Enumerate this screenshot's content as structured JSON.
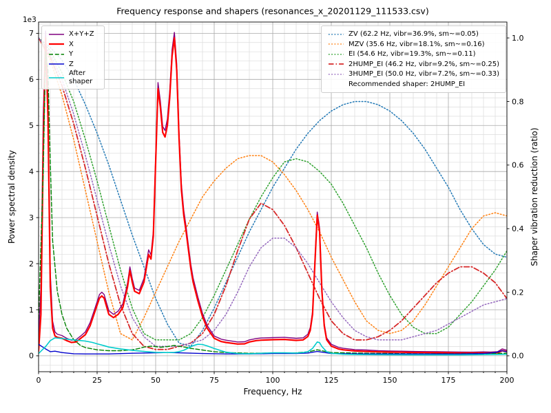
{
  "figure": {
    "title": "Frequency response and shapers (resonances_x_20201129_111533.csv)",
    "offset_text": "1e3"
  },
  "axes": {
    "xlabel": "Frequency, Hz",
    "ylabel_left": "Power spectral density",
    "ylabel_right": "Shaper vibration reduction (ratio)"
  },
  "legend_psd": {
    "items": [
      "X+Y+Z",
      "X",
      "Y",
      "Z",
      "After shaper"
    ]
  },
  "legend_shapers": {
    "items": [
      "ZV (62.2 Hz, vibr=36.9%, sm~=0.05)",
      "MZV (35.6 Hz, vibr=18.1%, sm~=0.16)",
      "EI (54.6 Hz, vibr=19.3%, sm~=0.11)",
      "2HUMP_EI (46.2 Hz, vibr=9.2%, sm~=0.25)",
      "3HUMP_EI (50.0 Hz, vibr=7.2%, sm~=0.33)"
    ],
    "note": "Recommended shaper: 2HUMP_EI"
  },
  "chart_data": {
    "type": "line",
    "title": "Frequency response and shapers (resonances_x_20201129_111533.csv)",
    "xlabel": "Frequency, Hz",
    "ylabel_left": "Power spectral density",
    "ylabel_right": "Shaper vibration reduction (ratio)",
    "grid": "major+minor",
    "legend_positions": [
      "upper-left",
      "upper-right"
    ],
    "xlim": [
      0,
      200
    ],
    "ylim_left": [
      -345,
      7245
    ],
    "ylim_right": [
      -0.05,
      1.05
    ],
    "x_ticks": [
      0,
      25,
      50,
      75,
      100,
      125,
      150,
      175,
      200
    ],
    "x_minor_step": 5,
    "y_ticks_left": [
      0,
      1000,
      2000,
      3000,
      4000,
      5000,
      6000,
      7000
    ],
    "y_minor_step_left": 200,
    "y_ticks_right": [
      0.0,
      0.2,
      0.4,
      0.6,
      0.8,
      1.0
    ],
    "series": [
      {
        "name": "ZV",
        "axis": "ratio",
        "color": "#1f77b4",
        "width": 1.5,
        "dash": "dot",
        "x0": 0,
        "dx": 5,
        "y": [
          1.0,
          0.97,
          0.93,
          0.87,
          0.79,
          0.7,
          0.6,
          0.49,
          0.38,
          0.28,
          0.18,
          0.1,
          0.04,
          0.03,
          0.08,
          0.15,
          0.23,
          0.31,
          0.39,
          0.46,
          0.53,
          0.59,
          0.65,
          0.7,
          0.74,
          0.77,
          0.79,
          0.8,
          0.8,
          0.79,
          0.77,
          0.74,
          0.7,
          0.65,
          0.59,
          0.53,
          0.46,
          0.4,
          0.35,
          0.32,
          0.31
        ]
      },
      {
        "name": "MZV",
        "axis": "ratio",
        "color": "#ff7f0e",
        "width": 1.5,
        "dash": "dot",
        "x0": 0,
        "dx": 5,
        "y": [
          1.0,
          0.93,
          0.82,
          0.68,
          0.52,
          0.36,
          0.2,
          0.07,
          0.05,
          0.12,
          0.2,
          0.28,
          0.36,
          0.43,
          0.5,
          0.55,
          0.59,
          0.62,
          0.63,
          0.63,
          0.61,
          0.57,
          0.52,
          0.46,
          0.39,
          0.31,
          0.24,
          0.17,
          0.11,
          0.08,
          0.07,
          0.08,
          0.11,
          0.16,
          0.22,
          0.28,
          0.34,
          0.4,
          0.44,
          0.45,
          0.44
        ]
      },
      {
        "name": "EI",
        "axis": "ratio",
        "color": "#2ca02c",
        "width": 1.5,
        "dash": "dot",
        "x0": 0,
        "dx": 5,
        "y": [
          1.0,
          0.96,
          0.89,
          0.8,
          0.68,
          0.55,
          0.41,
          0.27,
          0.15,
          0.07,
          0.05,
          0.05,
          0.05,
          0.07,
          0.12,
          0.19,
          0.27,
          0.35,
          0.43,
          0.5,
          0.56,
          0.61,
          0.62,
          0.61,
          0.58,
          0.54,
          0.48,
          0.41,
          0.34,
          0.26,
          0.19,
          0.13,
          0.09,
          0.07,
          0.07,
          0.09,
          0.13,
          0.17,
          0.22,
          0.27,
          0.33
        ]
      },
      {
        "name": "2HUMP_EI",
        "axis": "ratio",
        "color": "#d62728",
        "width": 1.8,
        "dash": "dashdot",
        "x0": 0,
        "dx": 5,
        "y": [
          1.0,
          0.94,
          0.85,
          0.73,
          0.59,
          0.44,
          0.29,
          0.16,
          0.07,
          0.03,
          0.02,
          0.02,
          0.03,
          0.04,
          0.07,
          0.13,
          0.22,
          0.33,
          0.43,
          0.48,
          0.46,
          0.41,
          0.34,
          0.26,
          0.18,
          0.11,
          0.07,
          0.05,
          0.05,
          0.06,
          0.08,
          0.11,
          0.15,
          0.19,
          0.23,
          0.26,
          0.28,
          0.28,
          0.26,
          0.23,
          0.18
        ]
      },
      {
        "name": "3HUMP_EI",
        "axis": "ratio",
        "color": "#9467bd",
        "width": 1.5,
        "dash": "dot",
        "x0": 0,
        "dx": 5,
        "y": [
          1.0,
          0.95,
          0.87,
          0.76,
          0.63,
          0.49,
          0.35,
          0.22,
          0.12,
          0.06,
          0.03,
          0.03,
          0.03,
          0.04,
          0.05,
          0.08,
          0.13,
          0.2,
          0.28,
          0.34,
          0.37,
          0.37,
          0.34,
          0.29,
          0.23,
          0.17,
          0.12,
          0.08,
          0.06,
          0.05,
          0.05,
          0.05,
          0.06,
          0.07,
          0.08,
          0.1,
          0.12,
          0.14,
          0.16,
          0.17,
          0.18
        ]
      },
      {
        "name": "X+Y+Z",
        "axis": "psd",
        "color": "#800080",
        "width": 1.4,
        "dash": "",
        "x": [
          0,
          1,
          2,
          3,
          4,
          5,
          6,
          7,
          8,
          10,
          12,
          14,
          16,
          18,
          20,
          22,
          24,
          26,
          27,
          28,
          30,
          32,
          34,
          36,
          38,
          39,
          40,
          41,
          43,
          45,
          46,
          47,
          48,
          49,
          50,
          51,
          52,
          53,
          54,
          55,
          56,
          57,
          58,
          59,
          60,
          61,
          62,
          63,
          64,
          65,
          66,
          68,
          70,
          72,
          75,
          78,
          80,
          85,
          88,
          90,
          93,
          95,
          100,
          105,
          110,
          113,
          115,
          116,
          117,
          118,
          119,
          120,
          121,
          122,
          123,
          125,
          128,
          130,
          135,
          140,
          145,
          150,
          155,
          160,
          165,
          170,
          175,
          180,
          185,
          190,
          193,
          196,
          198,
          200
        ],
        "y": [
          400,
          1500,
          5200,
          7050,
          5600,
          1800,
          750,
          520,
          470,
          440,
          380,
          340,
          350,
          430,
          520,
          720,
          1020,
          1330,
          1380,
          1330,
          980,
          900,
          970,
          1130,
          1580,
          1930,
          1680,
          1470,
          1420,
          1680,
          1990,
          2300,
          2190,
          2700,
          4330,
          5930,
          5530,
          4980,
          4890,
          5140,
          5740,
          6640,
          7020,
          6340,
          4830,
          3720,
          3160,
          2800,
          2390,
          1990,
          1690,
          1280,
          920,
          660,
          430,
          360,
          340,
          300,
          305,
          345,
          375,
          385,
          395,
          400,
          380,
          390,
          470,
          610,
          960,
          2070,
          3120,
          2770,
          1460,
          700,
          390,
          250,
          185,
          165,
          135,
          125,
          110,
          105,
          100,
          95,
          92,
          90,
          85,
          82,
          80,
          85,
          82,
          88,
          150,
          120
        ]
      },
      {
        "name": "X",
        "axis": "psd",
        "color": "#ff0000",
        "width": 2.2,
        "dash": "",
        "x": [
          0,
          1,
          2,
          3,
          4,
          5,
          6,
          7,
          8,
          10,
          12,
          14,
          16,
          18,
          20,
          22,
          24,
          26,
          27,
          28,
          30,
          32,
          34,
          36,
          38,
          39,
          40,
          41,
          43,
          45,
          46,
          47,
          48,
          49,
          50,
          51,
          52,
          53,
          54,
          55,
          56,
          57,
          58,
          59,
          60,
          61,
          62,
          63,
          64,
          65,
          66,
          68,
          70,
          72,
          75,
          78,
          80,
          85,
          88,
          90,
          93,
          95,
          100,
          105,
          110,
          113,
          115,
          116,
          117,
          118,
          119,
          120,
          121,
          122,
          123,
          125,
          128,
          130,
          135,
          140,
          145,
          150,
          155,
          160,
          165,
          170,
          175,
          180,
          185,
          190,
          193,
          196,
          198,
          200
        ],
        "y": [
          100,
          900,
          4500,
          6900,
          5200,
          1500,
          600,
          430,
          400,
          380,
          330,
          290,
          300,
          380,
          460,
          650,
          950,
          1250,
          1300,
          1250,
          900,
          830,
          900,
          1050,
          1500,
          1850,
          1600,
          1400,
          1350,
          1600,
          1900,
          2200,
          2100,
          2600,
          4200,
          5800,
          5400,
          4850,
          4750,
          5000,
          5600,
          6500,
          6900,
          6200,
          4700,
          3600,
          3050,
          2700,
          2300,
          1900,
          1600,
          1200,
          850,
          600,
          380,
          310,
          290,
          255,
          260,
          300,
          330,
          340,
          350,
          355,
          335,
          345,
          420,
          550,
          900,
          2000,
          3050,
          2700,
          1400,
          650,
          350,
          210,
          150,
          130,
          105,
          95,
          85,
          80,
          78,
          72,
          70,
          68,
          66,
          62,
          60,
          62,
          60,
          65,
          110,
          90
        ]
      },
      {
        "name": "Y",
        "axis": "psd",
        "color": "#008000",
        "width": 1.4,
        "dash": "dash",
        "x": [
          0,
          2,
          3,
          4,
          5,
          6,
          8,
          10,
          12,
          15,
          18,
          20,
          25,
          30,
          35,
          40,
          43,
          45,
          48,
          50,
          52,
          55,
          58,
          60,
          63,
          65,
          68,
          70,
          75,
          80,
          90,
          100,
          110,
          115,
          119,
          125,
          140,
          160,
          180,
          200
        ],
        "y": [
          800,
          4000,
          6600,
          6200,
          4200,
          2500,
          1400,
          900,
          600,
          350,
          220,
          180,
          130,
          110,
          110,
          130,
          160,
          190,
          210,
          200,
          185,
          200,
          225,
          205,
          185,
          160,
          140,
          125,
          90,
          70,
          55,
          60,
          65,
          85,
          130,
          70,
          55,
          45,
          45,
          55
        ]
      },
      {
        "name": "Z",
        "axis": "psd",
        "color": "#0000cd",
        "width": 1.4,
        "dash": "",
        "x": [
          0,
          3,
          5,
          7,
          10,
          15,
          20,
          30,
          40,
          50,
          55,
          60,
          70,
          80,
          90,
          100,
          110,
          115,
          119,
          125,
          140,
          160,
          180,
          190,
          195,
          198,
          200
        ],
        "y": [
          250,
          150,
          90,
          100,
          70,
          45,
          40,
          40,
          55,
          65,
          70,
          65,
          50,
          40,
          40,
          50,
          50,
          60,
          95,
          50,
          40,
          40,
          40,
          50,
          70,
          110,
          85
        ]
      },
      {
        "name": "After shaper",
        "axis": "psd",
        "color": "#00cccc",
        "width": 1.6,
        "dash": "",
        "x": [
          0,
          3,
          5,
          7,
          10,
          13,
          15,
          18,
          20,
          23,
          25,
          28,
          30,
          35,
          40,
          45,
          50,
          55,
          58,
          60,
          62,
          64,
          66,
          68,
          70,
          72,
          75,
          78,
          80,
          85,
          90,
          95,
          100,
          105,
          110,
          113,
          115,
          117,
          118,
          119,
          120,
          121,
          123,
          125,
          130,
          140,
          150,
          160,
          170,
          180,
          190,
          195,
          200
        ],
        "y": [
          50,
          200,
          330,
          390,
          375,
          355,
          345,
          330,
          320,
          290,
          260,
          220,
          190,
          150,
          120,
          95,
          75,
          70,
          75,
          90,
          120,
          170,
          220,
          250,
          245,
          215,
          160,
          110,
          80,
          50,
          45,
          55,
          65,
          65,
          60,
          70,
          90,
          160,
          230,
          300,
          285,
          200,
          90,
          55,
          35,
          25,
          22,
          20,
          20,
          20,
          25,
          30,
          35
        ]
      }
    ]
  }
}
